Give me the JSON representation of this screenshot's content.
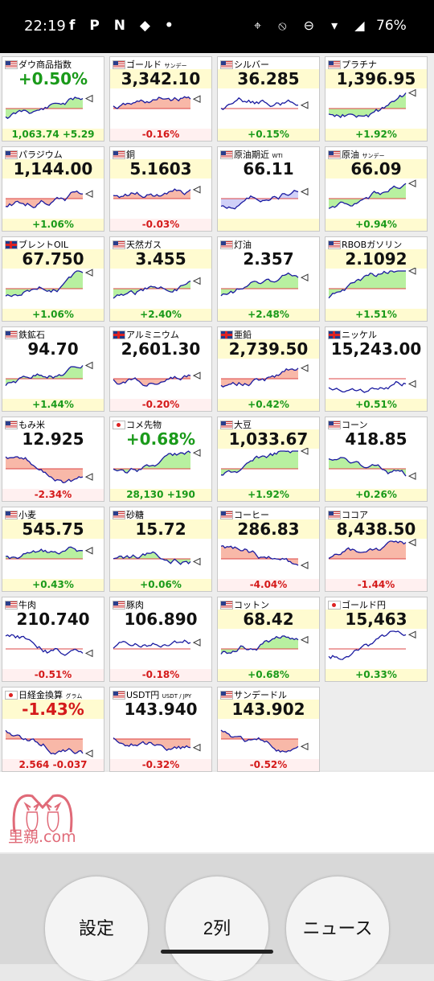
{
  "status_bar": {
    "time": "22:19",
    "app_icons": "f P N ◆ •",
    "system_icons": "⌖ ⦸ ⊖ ▾ ◢",
    "battery": "76%"
  },
  "cards": [
    {
      "flag": "us",
      "name": "ダウ商品指数",
      "name_suffix": "",
      "price": "+0.50%",
      "price_color": "#1a9a1a",
      "change": "1,063.74 +5.29",
      "dir": "up",
      "trend": "up",
      "fill": "g",
      "hl": false
    },
    {
      "flag": "us",
      "name": "ゴールド",
      "name_suffix": "サンデー",
      "price": "3,342.10",
      "price_color": "#111",
      "change": "-0.16%",
      "dir": "down",
      "trend": "flat",
      "fill": "r",
      "hl": true
    },
    {
      "flag": "us",
      "name": "シルバー",
      "name_suffix": "",
      "price": "36.285",
      "price_color": "#111",
      "change": "+0.15%",
      "dir": "up",
      "trend": "flat",
      "fill": "n",
      "hl": true
    },
    {
      "flag": "us",
      "name": "プラチナ",
      "name_suffix": "",
      "price": "1,396.95",
      "price_color": "#111",
      "change": "+1.92%",
      "dir": "up",
      "trend": "up",
      "fill": "g",
      "hl": true
    },
    {
      "flag": "us",
      "name": "パラジウム",
      "name_suffix": "",
      "price": "1,144.00",
      "price_color": "#111",
      "change": "+1.06%",
      "dir": "up",
      "trend": "up",
      "fill": "r",
      "hl": true
    },
    {
      "flag": "us",
      "name": "銅",
      "name_suffix": "",
      "price": "5.1603",
      "price_color": "#111",
      "change": "-0.03%",
      "dir": "down",
      "trend": "flat",
      "fill": "r",
      "hl": true
    },
    {
      "flag": "us",
      "name": "原油期近",
      "name_suffix": "WTI",
      "price": "66.11",
      "price_color": "#111",
      "change": "",
      "dir": "up",
      "trend": "up",
      "fill": "b",
      "hl": false
    },
    {
      "flag": "us",
      "name": "原油",
      "name_suffix": "サンデー",
      "price": "66.09",
      "price_color": "#111",
      "change": "+0.94%",
      "dir": "up",
      "trend": "up",
      "fill": "g",
      "hl": true
    },
    {
      "flag": "uk",
      "name": "ブレントOIL",
      "name_suffix": "",
      "price": "67.750",
      "price_color": "#111",
      "change": "+1.06%",
      "dir": "up",
      "trend": "up",
      "fill": "g",
      "hl": true
    },
    {
      "flag": "us",
      "name": "天然ガス",
      "name_suffix": "",
      "price": "3.455",
      "price_color": "#111",
      "change": "+2.40%",
      "dir": "up",
      "trend": "up",
      "fill": "g",
      "hl": true
    },
    {
      "flag": "us",
      "name": "灯油",
      "name_suffix": "",
      "price": "2.357",
      "price_color": "#111",
      "change": "+2.48%",
      "dir": "up",
      "trend": "up",
      "fill": "g",
      "hl": false
    },
    {
      "flag": "us",
      "name": "RBOBガソリン",
      "name_suffix": "",
      "price": "2.1092",
      "price_color": "#111",
      "change": "+1.51%",
      "dir": "up",
      "trend": "up",
      "fill": "g",
      "hl": true
    },
    {
      "flag": "us",
      "name": "鉄鉱石",
      "name_suffix": "",
      "price": "94.70",
      "price_color": "#111",
      "change": "+1.44%",
      "dir": "up",
      "trend": "up",
      "fill": "g",
      "hl": false
    },
    {
      "flag": "uk",
      "name": "アルミニウム",
      "name_suffix": "",
      "price": "2,601.30",
      "price_color": "#111",
      "change": "-0.20%",
      "dir": "down",
      "trend": "flat",
      "fill": "r",
      "hl": false
    },
    {
      "flag": "uk",
      "name": "亜鉛",
      "name_suffix": "",
      "price": "2,739.50",
      "price_color": "#111",
      "change": "+0.42%",
      "dir": "up",
      "trend": "up",
      "fill": "r",
      "hl": true
    },
    {
      "flag": "uk",
      "name": "ニッケル",
      "name_suffix": "",
      "price": "15,243.00",
      "price_color": "#111",
      "change": "+0.51%",
      "dir": "up",
      "trend": "up",
      "fill": "n",
      "hl": false
    },
    {
      "flag": "us",
      "name": "もみ米",
      "name_suffix": "",
      "price": "12.925",
      "price_color": "#111",
      "change": "-2.34%",
      "dir": "down",
      "trend": "down",
      "fill": "r",
      "hl": false
    },
    {
      "flag": "jp",
      "name": "コメ先物",
      "name_suffix": "",
      "price": "+0.68%",
      "price_color": "#1a9a1a",
      "change": "28,130 +190",
      "dir": "up",
      "trend": "flat",
      "fill": "g",
      "hl": false
    },
    {
      "flag": "us",
      "name": "大豆",
      "name_suffix": "",
      "price": "1,033.67",
      "price_color": "#111",
      "change": "+1.92%",
      "dir": "up",
      "trend": "up",
      "fill": "g",
      "hl": true
    },
    {
      "flag": "us",
      "name": "コーン",
      "name_suffix": "",
      "price": "418.85",
      "price_color": "#111",
      "change": "+0.26%",
      "dir": "up",
      "trend": "down",
      "fill": "g",
      "hl": false
    },
    {
      "flag": "us",
      "name": "小麦",
      "name_suffix": "",
      "price": "545.75",
      "price_color": "#111",
      "change": "+0.43%",
      "dir": "up",
      "trend": "flat",
      "fill": "g",
      "hl": true
    },
    {
      "flag": "us",
      "name": "砂糖",
      "name_suffix": "",
      "price": "15.72",
      "price_color": "#111",
      "change": "+0.06%",
      "dir": "up",
      "trend": "flat",
      "fill": "g",
      "hl": true
    },
    {
      "flag": "us",
      "name": "コーヒー",
      "name_suffix": "",
      "price": "286.83",
      "price_color": "#111",
      "change": "-4.04%",
      "dir": "down",
      "trend": "down",
      "fill": "r",
      "hl": true
    },
    {
      "flag": "us",
      "name": "ココア",
      "name_suffix": "",
      "price": "8,438.50",
      "price_color": "#111",
      "change": "-1.44%",
      "dir": "down",
      "trend": "flat",
      "fill": "r",
      "hl": true
    },
    {
      "flag": "us",
      "name": "牛肉",
      "name_suffix": "",
      "price": "210.740",
      "price_color": "#111",
      "change": "-0.51%",
      "dir": "down",
      "trend": "down",
      "fill": "n",
      "hl": false
    },
    {
      "flag": "us",
      "name": "豚肉",
      "name_suffix": "",
      "price": "106.890",
      "price_color": "#111",
      "change": "-0.18%",
      "dir": "down",
      "trend": "flat",
      "fill": "n",
      "hl": false
    },
    {
      "flag": "us",
      "name": "コットン",
      "name_suffix": "",
      "price": "68.42",
      "price_color": "#111",
      "change": "+0.68%",
      "dir": "up",
      "trend": "up",
      "fill": "g",
      "hl": true
    },
    {
      "flag": "jp",
      "name": "ゴールド円",
      "name_suffix": "",
      "price": "15,463",
      "price_color": "#111",
      "change": "+0.33%",
      "dir": "up",
      "trend": "up",
      "fill": "n",
      "hl": true
    },
    {
      "flag": "jp",
      "name": "日経金換算",
      "name_suffix": "グラム",
      "price": "-1.43%",
      "price_color": "#d41a1a",
      "change": "2.564 -0.037",
      "dir": "down",
      "trend": "down",
      "fill": "r",
      "hl": true
    },
    {
      "flag": "us",
      "name": "USDT円",
      "name_suffix": "USDT / JPY",
      "price": "143.940",
      "price_color": "#111",
      "change": "-0.32%",
      "dir": "down",
      "trend": "flat",
      "fill": "r",
      "hl": false
    },
    {
      "flag": "us",
      "name": "サンデードル",
      "name_suffix": "",
      "price": "143.902",
      "price_color": "#111",
      "change": "-0.52%",
      "dir": "down",
      "trend": "down",
      "fill": "r",
      "hl": true
    }
  ],
  "ad": {
    "brand": "里親.com"
  },
  "bottom_buttons": {
    "settings": "設定",
    "columns": "2列",
    "news": "ニュース"
  },
  "colors": {
    "up": "#1a9a1a",
    "down": "#d41a1a",
    "fill_green": "#b8f0a0",
    "fill_red": "#f8b8a8",
    "fill_blue": "#d0d0f8",
    "line": "#1a1aa0"
  }
}
